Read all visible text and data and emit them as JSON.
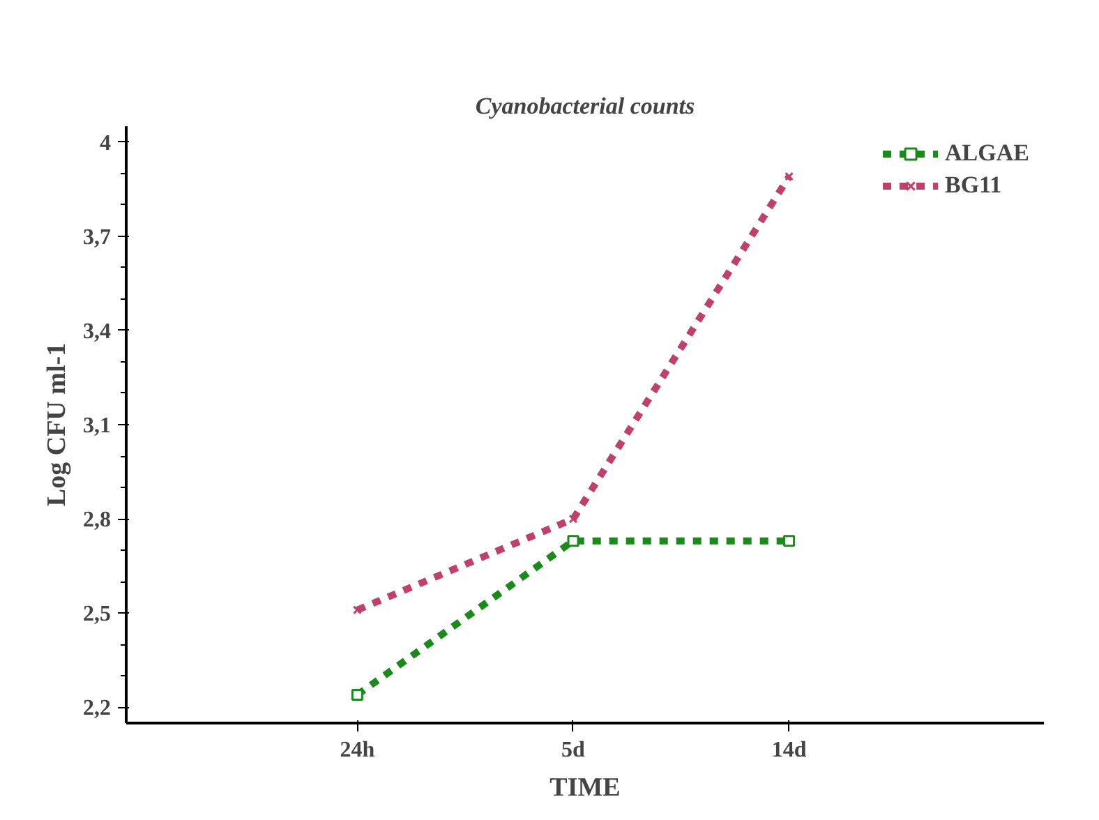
{
  "chart_data": {
    "type": "line",
    "title": "Cyanobacterial counts",
    "xlabel": "TIME",
    "ylabel": "Log CFU ml-1",
    "categories": [
      "24h",
      "5d",
      "14d"
    ],
    "series": [
      {
        "name": "ALGAE",
        "color": "#1a8a1a",
        "values": [
          2.24,
          2.73,
          2.73
        ],
        "marker": "square"
      },
      {
        "name": "BG11",
        "color": "#c0406a",
        "values": [
          2.51,
          2.8,
          3.89
        ],
        "marker": "cross"
      }
    ],
    "ylim": [
      2.15,
      4.05
    ],
    "yticks": [
      {
        "value": 2.2,
        "label": "2,2"
      },
      {
        "value": 2.5,
        "label": "2,5"
      },
      {
        "value": 2.8,
        "label": "2,8"
      },
      {
        "value": 3.1,
        "label": "3,1"
      },
      {
        "value": 3.4,
        "label": "3,4"
      },
      {
        "value": 3.7,
        "label": "3,7"
      },
      {
        "value": 4,
        "label": "4"
      }
    ],
    "grid": false,
    "legend": "top right",
    "line_style": "dashed"
  }
}
